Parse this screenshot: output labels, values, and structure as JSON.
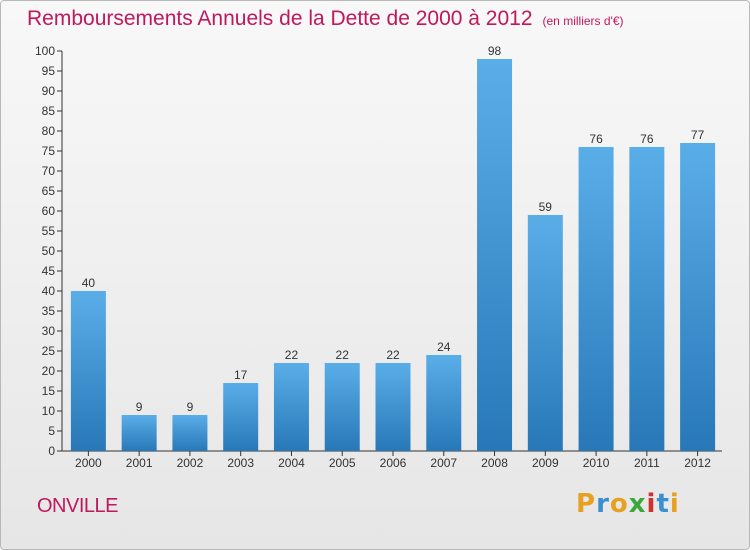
{
  "title": "Remboursements Annuels de la Dette de 2000 à 2012",
  "unit_note": "(en milliers d'€)",
  "place": "ONVILLE",
  "logo": {
    "text": "Proxiti",
    "letters": [
      {
        "ch": "P",
        "color": "#e8a020"
      },
      {
        "ch": "r",
        "color": "#3a8fd0"
      },
      {
        "ch": "o",
        "color": "#e8a020"
      },
      {
        "ch": "x",
        "color": "#3aa83a"
      },
      {
        "ch": "i",
        "color": "#d03030"
      },
      {
        "ch": "t",
        "color": "#3a8fd0"
      },
      {
        "ch": "i",
        "color": "#e8a020"
      }
    ]
  },
  "colors": {
    "title": "#c0185c",
    "bar_top": "#5aaee8",
    "bar_bottom": "#2878b8",
    "axis": "#333333"
  },
  "chart_data": {
    "type": "bar",
    "categories": [
      "2000",
      "2001",
      "2002",
      "2003",
      "2004",
      "2005",
      "2006",
      "2007",
      "2008",
      "2009",
      "2010",
      "2011",
      "2012"
    ],
    "values": [
      40,
      9,
      9,
      17,
      22,
      22,
      22,
      24,
      98,
      59,
      76,
      76,
      77
    ],
    "ylim": [
      0,
      100
    ],
    "yticks": [
      0,
      5,
      10,
      15,
      20,
      25,
      30,
      35,
      40,
      45,
      50,
      55,
      60,
      65,
      70,
      75,
      80,
      85,
      90,
      95,
      100
    ],
    "grid": false,
    "data_labels": true
  }
}
